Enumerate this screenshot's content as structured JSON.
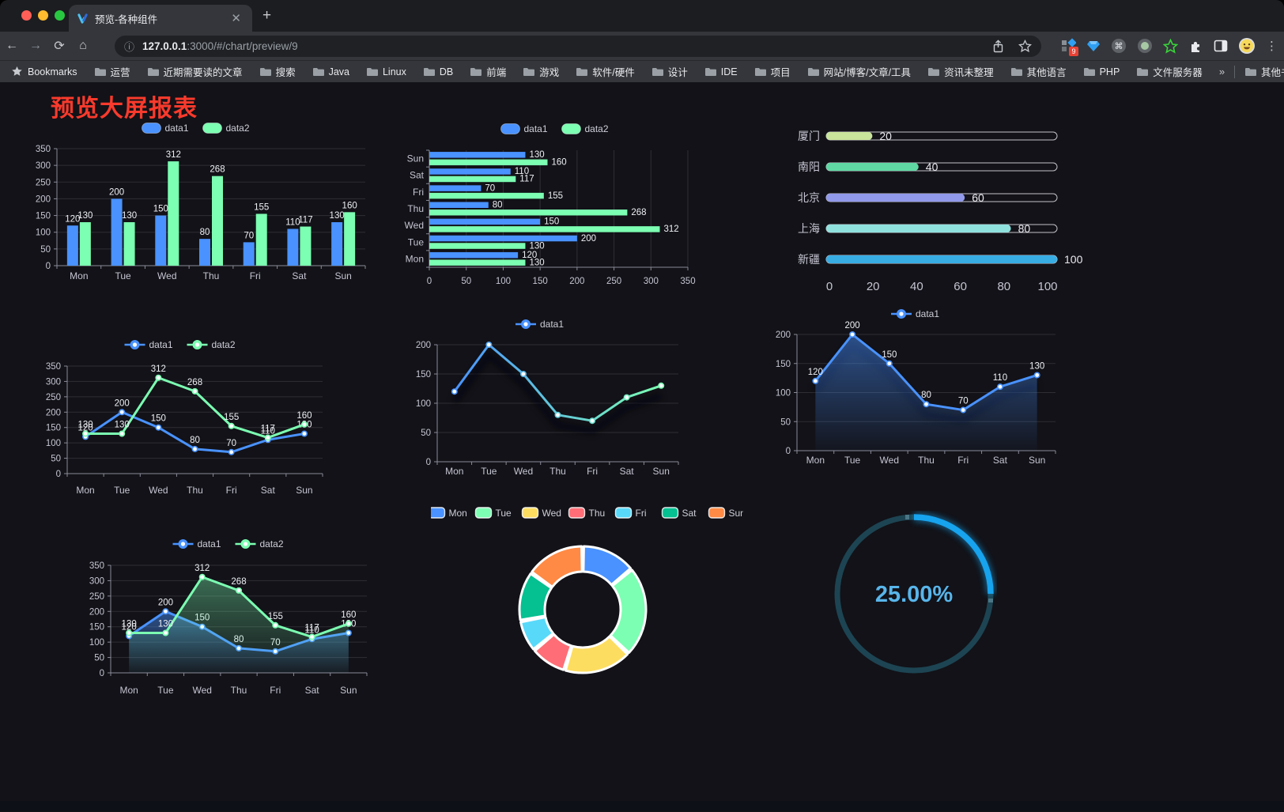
{
  "browser": {
    "tab_title": "预览-各种组件",
    "url_host": "127.0.0.1",
    "url_rest": ":3000/#/chart/preview/9",
    "extension_badge": "9",
    "bookmarks_label": "Bookmarks",
    "bookmarks": [
      "运营",
      "近期需要读的文章",
      "搜索",
      "Java",
      "Linux",
      "DB",
      "前端",
      "游戏",
      "软件/硬件",
      "设计",
      "IDE",
      "项目",
      "网站/博客/文章/工具",
      "资讯未整理",
      "其他语言",
      "PHP",
      "文件服务器"
    ],
    "overflow_chevron": "»",
    "other_bookmarks": "其他书签"
  },
  "page": {
    "title": "预览大屏报表",
    "title_color": "#f93a2c",
    "background": "#121218"
  },
  "chart_data": [
    {
      "id": "bar-vertical",
      "type": "bar",
      "categories": [
        "Mon",
        "Tue",
        "Wed",
        "Thu",
        "Fri",
        "Sat",
        "Sun"
      ],
      "series": [
        {
          "name": "data1",
          "color": "#4992ff",
          "values": [
            120,
            200,
            150,
            80,
            70,
            110,
            130
          ]
        },
        {
          "name": "data2",
          "color": "#7cffb2",
          "values": [
            130,
            130,
            312,
            268,
            155,
            117,
            160
          ]
        }
      ],
      "ylim": [
        0,
        350
      ],
      "ystep": 50,
      "grid": true,
      "legend_position": "top",
      "value_labels": true
    },
    {
      "id": "bar-horizontal",
      "type": "bar-horizontal",
      "categories": [
        "Mon",
        "Tue",
        "Wed",
        "Thu",
        "Fri",
        "Sat",
        "Sun"
      ],
      "series": [
        {
          "name": "data1",
          "color": "#4992ff",
          "values": [
            120,
            200,
            150,
            80,
            70,
            110,
            130
          ]
        },
        {
          "name": "data2",
          "color": "#7cffb2",
          "values": [
            130,
            130,
            312,
            268,
            155,
            117,
            160
          ]
        }
      ],
      "xlim": [
        0,
        350
      ],
      "xstep": 50,
      "grid": true,
      "legend_position": "top",
      "value_labels": true
    },
    {
      "id": "progress-bars",
      "type": "progress",
      "rows": [
        {
          "label": "厦门",
          "value": 20,
          "color": "#c9e49b"
        },
        {
          "label": "南阳",
          "value": 40,
          "color": "#5fd8a3"
        },
        {
          "label": "北京",
          "value": 60,
          "color": "#9099ea"
        },
        {
          "label": "上海",
          "value": 80,
          "color": "#8fe1de"
        },
        {
          "label": "新疆",
          "value": 100,
          "color": "#38ade4"
        }
      ],
      "xlim": [
        0,
        100
      ],
      "xstep": 20
    },
    {
      "id": "line-two",
      "type": "line",
      "categories": [
        "Mon",
        "Tue",
        "Wed",
        "Thu",
        "Fri",
        "Sat",
        "Sun"
      ],
      "series": [
        {
          "name": "data1",
          "color": "#4992ff",
          "values": [
            120,
            200,
            150,
            80,
            70,
            110,
            130
          ]
        },
        {
          "name": "data2",
          "color": "#7cffb2",
          "values": [
            130,
            130,
            312,
            268,
            155,
            117,
            160
          ]
        }
      ],
      "ylim": [
        0,
        350
      ],
      "ystep": 50,
      "grid": true,
      "legend_position": "top",
      "value_labels": true
    },
    {
      "id": "line-gradient",
      "type": "line",
      "categories": [
        "Mon",
        "Tue",
        "Wed",
        "Thu",
        "Fri",
        "Sat",
        "Sun"
      ],
      "series": [
        {
          "name": "data1",
          "color": "#4992ff",
          "gradient": [
            "#4992ff",
            "#7cffb2"
          ],
          "values": [
            120,
            200,
            150,
            80,
            70,
            110,
            130
          ]
        }
      ],
      "ylim": [
        0,
        200
      ],
      "ystep": 50,
      "grid": true,
      "legend_position": "top",
      "value_labels": false,
      "shadow": true
    },
    {
      "id": "area-single",
      "type": "area",
      "categories": [
        "Mon",
        "Tue",
        "Wed",
        "Thu",
        "Fri",
        "Sat",
        "Sun"
      ],
      "series": [
        {
          "name": "data1",
          "color": "#4992ff",
          "values": [
            120,
            200,
            150,
            80,
            70,
            110,
            130
          ]
        }
      ],
      "ylim": [
        0,
        200
      ],
      "ystep": 50,
      "grid": true,
      "legend_position": "top",
      "value_labels": true,
      "shadow": true
    },
    {
      "id": "area-two",
      "type": "area",
      "categories": [
        "Mon",
        "Tue",
        "Wed",
        "Thu",
        "Fri",
        "Sat",
        "Sun"
      ],
      "series": [
        {
          "name": "data1",
          "color": "#4992ff",
          "values": [
            120,
            200,
            150,
            80,
            70,
            110,
            130
          ]
        },
        {
          "name": "data2",
          "color": "#7cffb2",
          "values": [
            130,
            130,
            312,
            268,
            155,
            117,
            160
          ]
        }
      ],
      "ylim": [
        0,
        350
      ],
      "ystep": 50,
      "grid": true,
      "legend_position": "top",
      "value_labels": true
    },
    {
      "id": "donut",
      "type": "pie",
      "categories": [
        "Mon",
        "Tue",
        "Wed",
        "Thu",
        "Fri",
        "Sat",
        "Sun"
      ],
      "values": [
        120,
        200,
        150,
        80,
        70,
        110,
        130
      ],
      "colors": [
        "#4992ff",
        "#7cffb2",
        "#fddd60",
        "#ff6e76",
        "#58d9f9",
        "#05c091",
        "#ff8a45"
      ],
      "inner_radius_ratio": 0.6,
      "legend_position": "top"
    },
    {
      "id": "gauge",
      "type": "gauge",
      "value": 25,
      "label": "25.00%",
      "color": "#17a3ee",
      "track_color": "#1d4452",
      "text_color": "#58b5ea"
    }
  ]
}
